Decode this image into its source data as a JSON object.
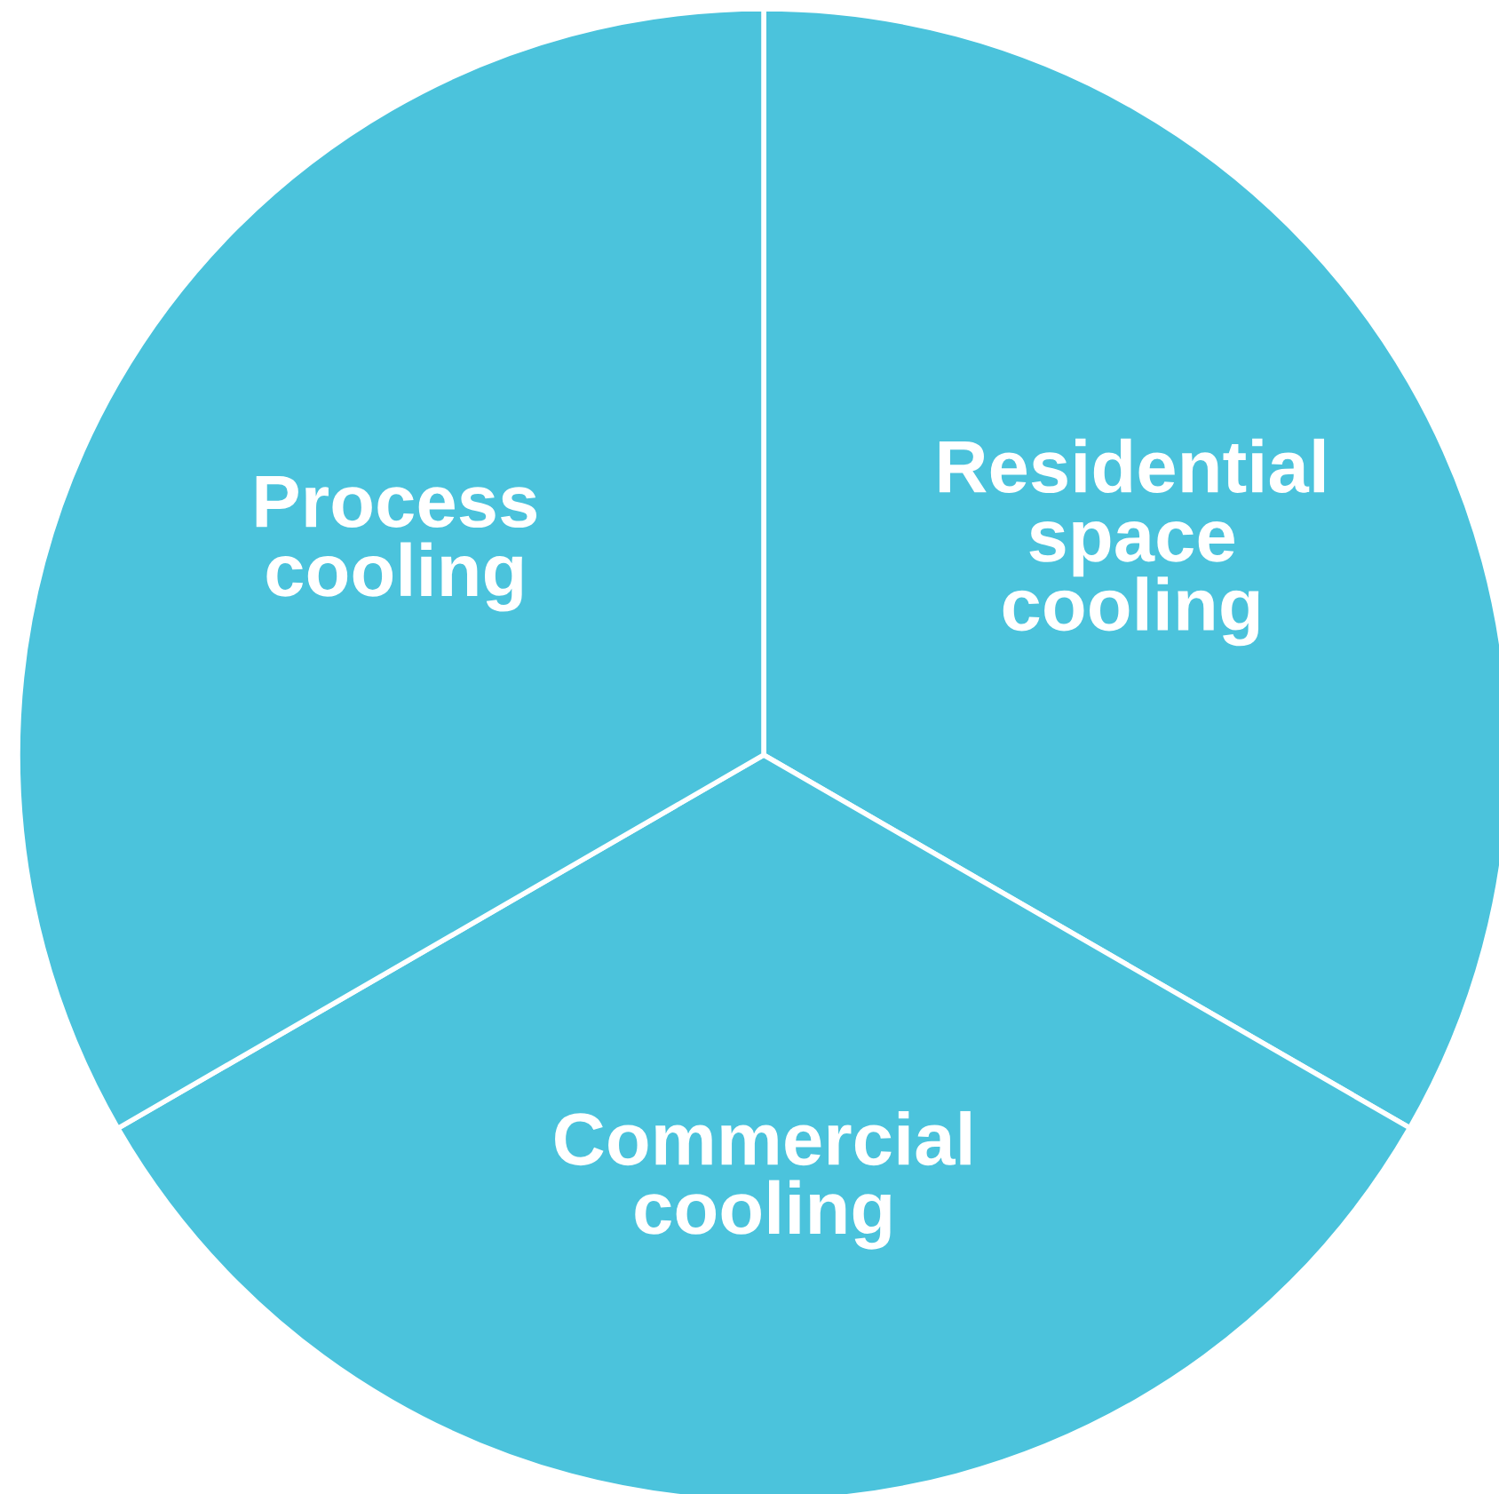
{
  "chart_data": {
    "type": "pie",
    "categories": [
      "Residential\nspace\ncooling",
      "Commercial\ncooling",
      "Process\ncooling"
    ],
    "values": [
      33.33,
      33.33,
      33.34
    ],
    "colors": [
      "#4bc3dc",
      "#4bc3dc",
      "#4bc3dc"
    ],
    "legend": false
  }
}
